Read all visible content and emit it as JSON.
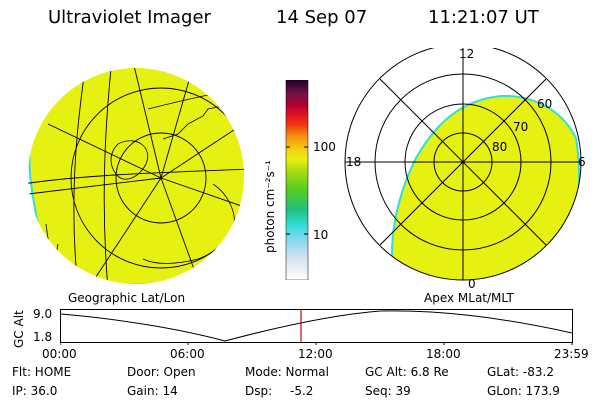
{
  "header": {
    "instrument": "Ultraviolet Imager",
    "date": "14 Sep 07",
    "time": "11:21:07 UT"
  },
  "colorbar": {
    "unit_label": "photon cm⁻²s⁻¹",
    "tick_100": "100",
    "tick_10": "10"
  },
  "geo_panel": {
    "caption": "Geographic Lat/Lon"
  },
  "apex_panel": {
    "caption": "Apex MLat/MLT",
    "mlt_12": "12",
    "mlt_18": "18",
    "mlt_6": "6",
    "mlt_0": "0",
    "lat_60": "60",
    "lat_70": "70",
    "lat_80": "80"
  },
  "altitude_plot": {
    "ylabel": "GC Alt",
    "ytick_top": "9.0",
    "ytick_bottom": "1.8",
    "xticks": [
      "00:00",
      "06:00",
      "12:00",
      "18:00",
      "23:59"
    ],
    "marker_color": "#cc0000"
  },
  "status": {
    "flt": "Flt: HOME",
    "ip": "IP: 36.0",
    "door": "Door: Open",
    "gain": "Gain: 14",
    "mode": "Mode: Normal",
    "dsp": "Dsp:",
    "dsp_value": "-5.2",
    "gc_alt": "GC Alt: 6.8 Re",
    "seq": "Seq: 39",
    "glat": "GLat: -83.2",
    "glon": "GLon: 173.9"
  },
  "colors": {
    "emission_fill": "#e6f011",
    "emission_edge": "#33dddd"
  }
}
